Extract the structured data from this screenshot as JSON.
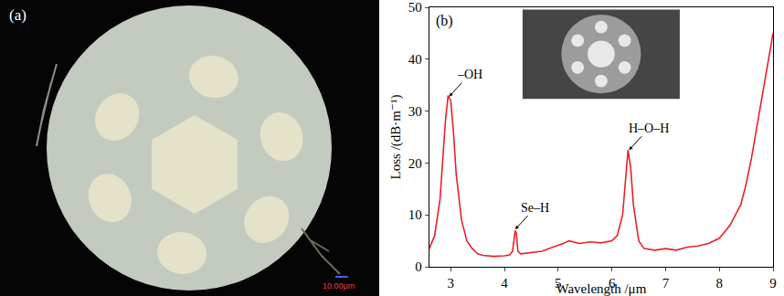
{
  "image_panel": {
    "label": "(a)",
    "scale_bar": "10.00μm"
  },
  "chart_data": {
    "type": "line",
    "panel_label": "(b)",
    "x_label": "Wavelength /μm",
    "y_label": "Loss /(dB·m⁻¹)",
    "x": [
      2.6,
      2.7,
      2.8,
      2.85,
      2.9,
      2.95,
      3.0,
      3.05,
      3.1,
      3.2,
      3.3,
      3.4,
      3.5,
      3.6,
      3.8,
      4.0,
      4.1,
      4.15,
      4.2,
      4.22,
      4.25,
      4.3,
      4.5,
      4.7,
      4.9,
      5.1,
      5.2,
      5.4,
      5.6,
      5.8,
      6.0,
      6.1,
      6.2,
      6.25,
      6.3,
      6.35,
      6.4,
      6.5,
      6.6,
      6.8,
      7.0,
      7.2,
      7.4,
      7.6,
      7.8,
      8.0,
      8.2,
      8.4,
      8.5,
      8.6,
      8.7,
      8.8,
      8.9,
      9.0
    ],
    "values": [
      3.5,
      6,
      13,
      20,
      28,
      33,
      32,
      26,
      18,
      9,
      5,
      3.5,
      2.5,
      2.2,
      2,
      2.1,
      2.3,
      3,
      7,
      6.5,
      3,
      2.5,
      2.7,
      3,
      3.8,
      4.5,
      5,
      4.5,
      4.8,
      4.6,
      5,
      6,
      10,
      17,
      22.5,
      19,
      12,
      5,
      3.5,
      3.2,
      3.5,
      3.2,
      3.8,
      4,
      4.5,
      5.5,
      8,
      12,
      16,
      21,
      27,
      33,
      39,
      45
    ],
    "color": "#e8202a",
    "xlim": [
      2.6,
      9
    ],
    "xticks": [
      3,
      4,
      5,
      6,
      7,
      8,
      9
    ],
    "ylim": [
      0,
      50
    ],
    "yticks": [
      0,
      10,
      20,
      30,
      40,
      50
    ],
    "grid": false,
    "annotations": [
      {
        "text": "–OH",
        "x": 2.97,
        "y": 32.8
      },
      {
        "text": "Se–H",
        "x": 4.2,
        "y": 7.2
      },
      {
        "text": "H–O–H",
        "x": 6.32,
        "y": 22.5
      }
    ]
  }
}
